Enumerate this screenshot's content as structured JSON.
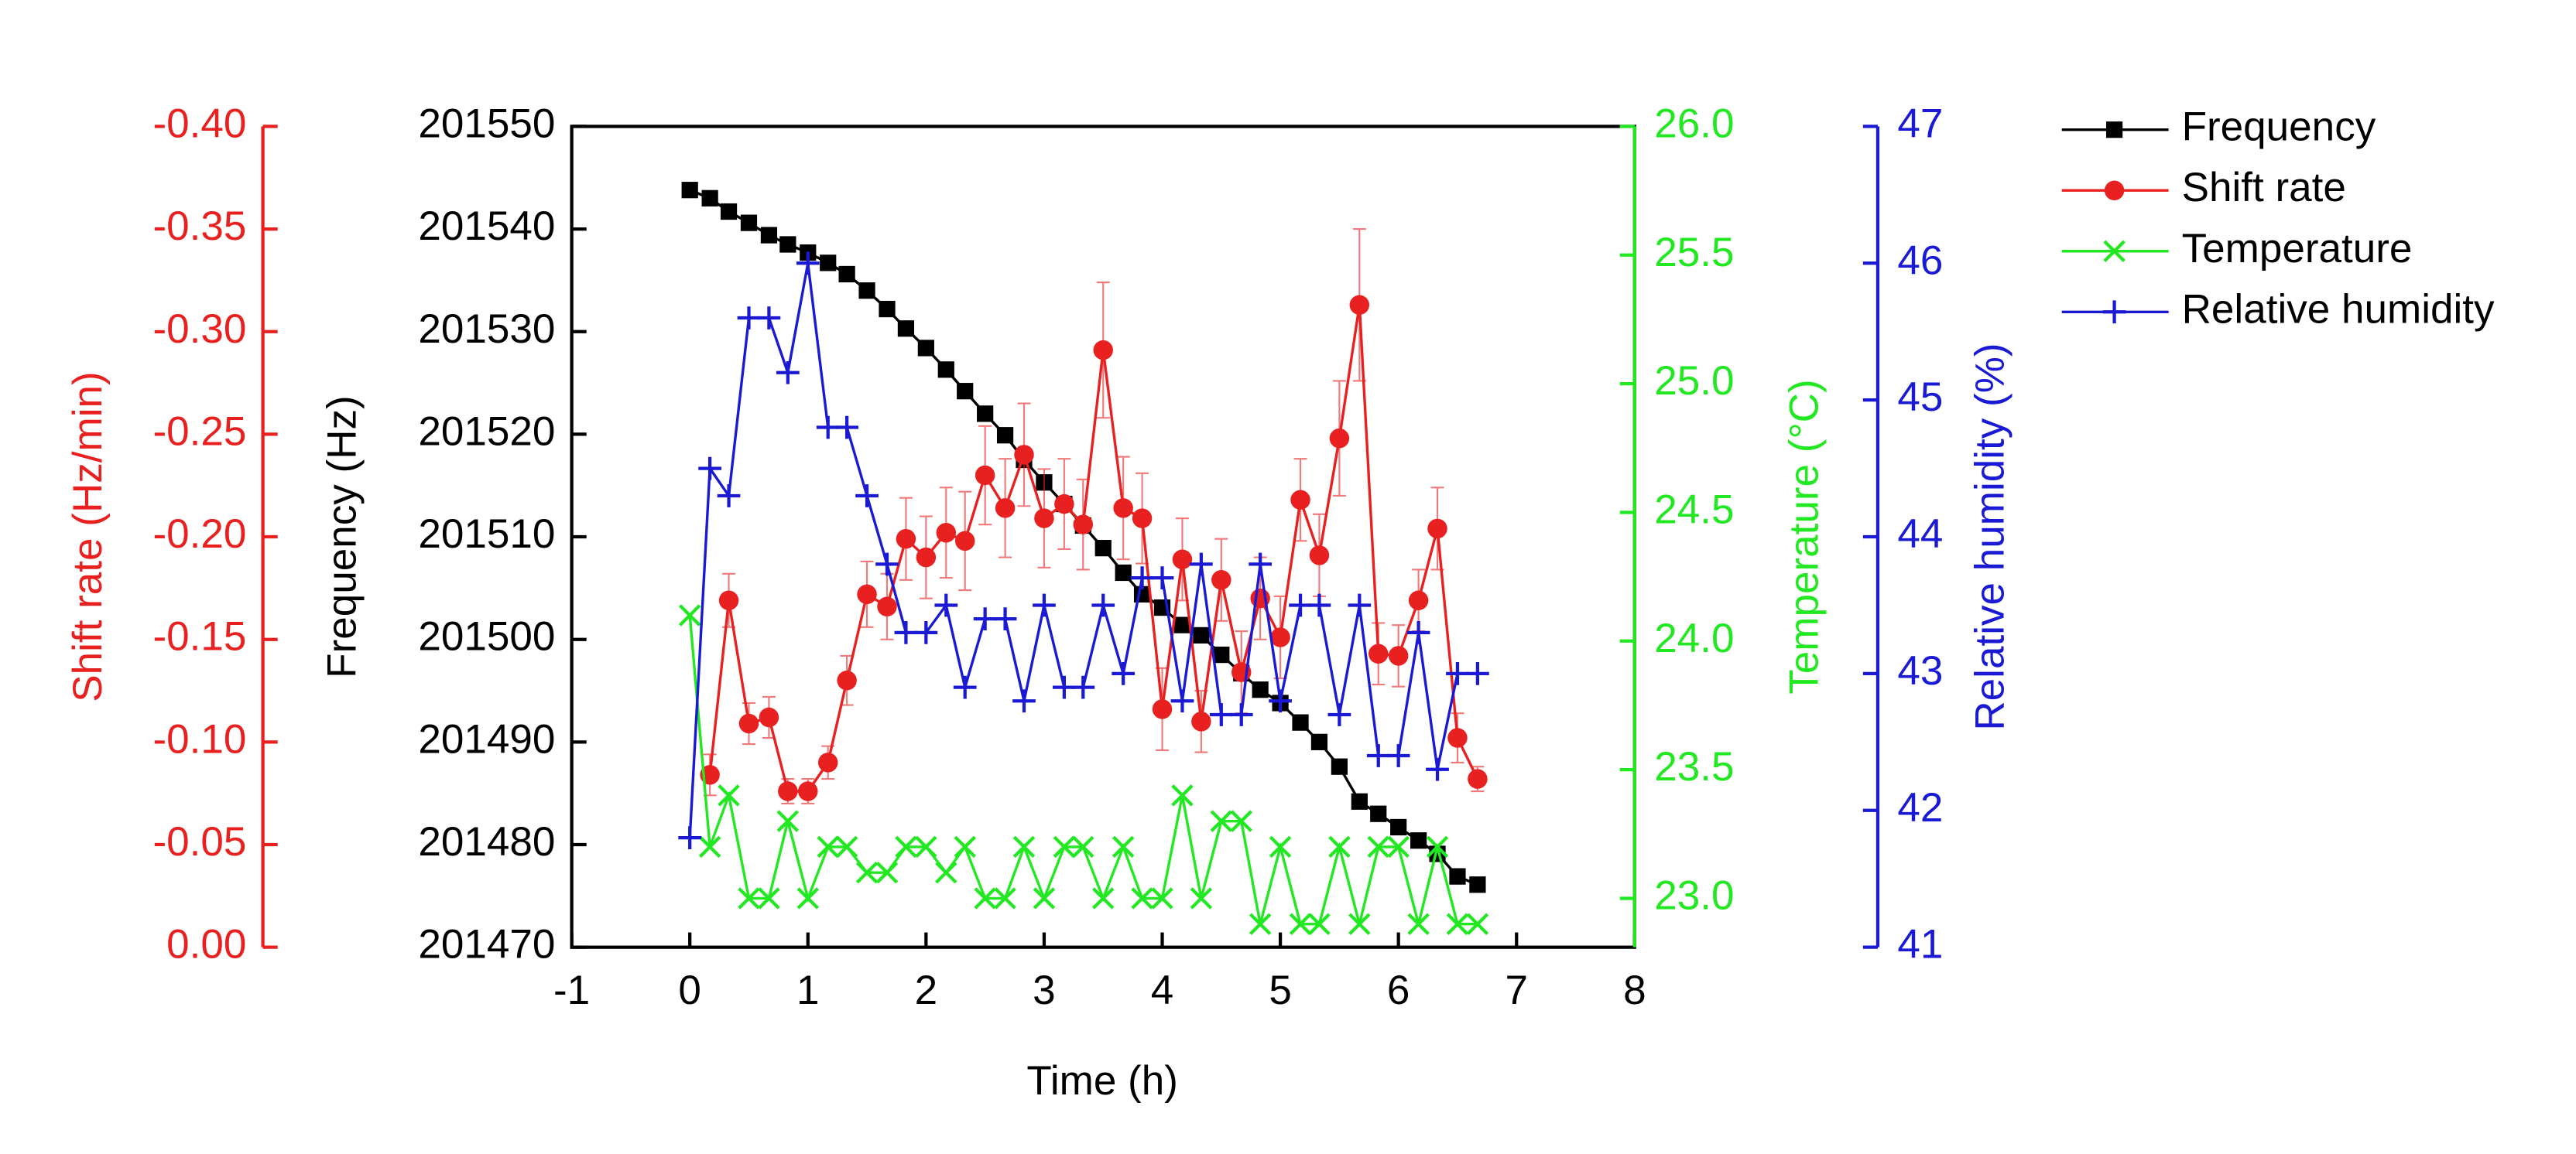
{
  "chart_data": {
    "type": "line",
    "x_label": "Time (h)",
    "y_label": "Frequency (Hz)",
    "y2_label": "Shift rate (Hz/min)",
    "y3_label": "Temperature (°C)",
    "y4_label": "Relative humidity (%)",
    "xlim": [
      -1,
      8
    ],
    "xticks": [
      -1,
      0,
      1,
      2,
      3,
      4,
      5,
      6,
      7,
      8
    ],
    "ylim": [
      201470,
      201550
    ],
    "yticks": [
      201470,
      201480,
      201490,
      201500,
      201510,
      201520,
      201530,
      201540,
      201550
    ],
    "y2lim": [
      0,
      -0.4
    ],
    "y2ticks": [
      {
        "value": 0,
        "label": "0.00"
      },
      -0.05,
      {
        "value": -0.1,
        "label": "-0.10"
      },
      -0.15,
      {
        "value": -0.2,
        "label": "-0.20"
      },
      -0.25,
      {
        "value": -0.3,
        "label": "-0.30"
      },
      -0.35,
      {
        "value": -0.4,
        "label": "-0.40"
      }
    ],
    "y3lim": [
      22.81,
      26.0
    ],
    "y3ticks": [
      {
        "value": 23,
        "label": "23.0"
      },
      23.5,
      {
        "value": 24,
        "label": "24.0"
      },
      24.5,
      {
        "value": 25,
        "label": "25.0"
      },
      25.5,
      {
        "value": 26,
        "label": "26.0"
      }
    ],
    "y4lim": [
      41,
      47
    ],
    "y4ticks": [
      41,
      42,
      43,
      44,
      45,
      46,
      47
    ],
    "x": [
      0,
      0.17,
      0.33,
      0.5,
      0.67,
      0.83,
      1,
      1.17,
      1.33,
      1.5,
      1.67,
      1.83,
      2,
      2.17,
      2.33,
      2.5,
      2.67,
      2.83,
      3,
      3.17,
      3.33,
      3.5,
      3.67,
      3.83,
      4,
      4.17,
      4.33,
      4.5,
      4.67,
      4.83,
      5,
      5.17,
      5.33,
      5.5,
      5.67,
      5.83,
      6,
      6.17,
      6.33,
      6.5,
      6.67
    ],
    "series": [
      {
        "name": "Frequency",
        "color": "#000000",
        "axis": "y",
        "marker": "square",
        "values": [
          201543.8,
          201543.0,
          201541.7,
          201540.6,
          201539.4,
          201538.5,
          201537.7,
          201536.7,
          201535.6,
          201534.0,
          201532.2,
          201530.3,
          201528.4,
          201526.3,
          201524.2,
          201522.0,
          201519.9,
          201517.5,
          201515.3,
          201513.2,
          201511.1,
          201508.9,
          201506.5,
          201504.4,
          201503.1,
          201501.4,
          201500.4,
          201498.5,
          201496.7,
          201495.1,
          201493.8,
          201491.9,
          201490.0,
          201487.6,
          201484.2,
          201483.0,
          201481.7,
          201480.4,
          201479.1,
          201476.9,
          201476.1
        ]
      },
      {
        "name": "Shift rate",
        "color": "#e8201f",
        "axis": "y2",
        "marker": "circle",
        "values": [
          null,
          -0.084,
          -0.169,
          -0.109,
          -0.112,
          -0.076,
          -0.076,
          -0.09,
          -0.13,
          -0.172,
          -0.166,
          -0.199,
          -0.19,
          -0.202,
          -0.198,
          -0.23,
          -0.214,
          -0.24,
          -0.209,
          -0.216,
          -0.206,
          -0.291,
          -0.214,
          -0.209,
          -0.116,
          -0.189,
          -0.11,
          -0.179,
          -0.134,
          -0.17,
          -0.151,
          -0.218,
          -0.191,
          -0.248,
          -0.313,
          -0.143,
          -0.142,
          -0.169,
          -0.204,
          -0.102,
          -0.082
        ],
        "errors": [
          null,
          0.01,
          0.013,
          0.01,
          0.01,
          0.006,
          0.006,
          0.008,
          0.012,
          0.016,
          0.016,
          0.02,
          0.02,
          0.022,
          0.024,
          0.024,
          0.024,
          0.025,
          0.024,
          0.022,
          0.022,
          0.033,
          0.025,
          0.022,
          0.02,
          0.02,
          0.015,
          0.02,
          0.02,
          0.02,
          0.02,
          0.02,
          0.02,
          0.028,
          0.037,
          0.015,
          0.015,
          0.015,
          0.02,
          0.012,
          0.006
        ]
      },
      {
        "name": "Temperature",
        "color": "#22e822",
        "axis": "y3",
        "marker": "x",
        "values": [
          24.1,
          23.2,
          23.4,
          23.0,
          23.0,
          23.3,
          23.0,
          23.2,
          23.2,
          23.1,
          23.1,
          23.2,
          23.2,
          23.1,
          23.2,
          23.0,
          23.0,
          23.2,
          23.0,
          23.2,
          23.2,
          23.0,
          23.2,
          23.0,
          23.0,
          23.4,
          23.0,
          23.3,
          23.3,
          22.9,
          23.2,
          22.9,
          22.9,
          23.2,
          22.9,
          23.2,
          23.2,
          22.9,
          23.2,
          22.9,
          22.9
        ]
      },
      {
        "name": "Relative humidity",
        "color": "#1a1ad4",
        "axis": "y4",
        "marker": "plus",
        "values": [
          41.8,
          44.5,
          44.3,
          45.6,
          45.6,
          45.2,
          46.0,
          44.8,
          44.8,
          44.3,
          43.8,
          43.3,
          43.3,
          43.5,
          42.9,
          43.4,
          43.4,
          42.8,
          43.5,
          42.9,
          42.9,
          43.5,
          43.0,
          43.7,
          43.7,
          42.8,
          43.8,
          42.7,
          42.7,
          43.8,
          42.8,
          43.5,
          43.5,
          42.7,
          43.5,
          42.4,
          42.4,
          43.3,
          42.3,
          43.0,
          43.0
        ]
      }
    ]
  }
}
